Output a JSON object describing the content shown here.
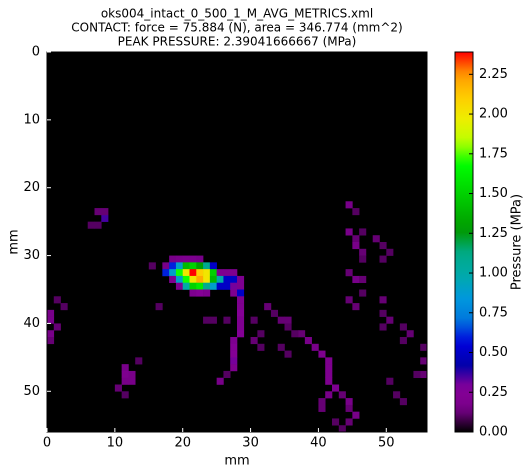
{
  "chart_data": {
    "type": "heatmap",
    "title": [
      "oks004_intact_0_500_1_M_AVG_METRICS.xml",
      "CONTACT: force = 75.884 (N), area = 346.774 (mm^2)",
      "PEAK PRESSURE: 2.39041666667 (MPa)"
    ],
    "xlabel": "mm",
    "ylabel": "mm",
    "colorbar_label": "Pressure (MPa)",
    "xlim": [
      0,
      56
    ],
    "ylim": [
      0,
      56
    ],
    "y_inverted": true,
    "xticks": [
      0,
      10,
      20,
      30,
      40,
      50
    ],
    "yticks": [
      0,
      10,
      20,
      30,
      40,
      50
    ],
    "clim": [
      0,
      2.39041666667
    ],
    "colormap": "nipy_spectral",
    "background": "#000000",
    "cticks": [
      {
        "value": 0,
        "label": "0.00"
      },
      {
        "value": 0.25,
        "label": "0.25"
      },
      {
        "value": 0.5,
        "label": "0.50"
      },
      {
        "value": 0.75,
        "label": "0.75"
      },
      {
        "value": 1,
        "label": "1.00"
      },
      {
        "value": 1.25,
        "label": "1.25"
      },
      {
        "value": 1.5,
        "label": "1.50"
      },
      {
        "value": 1.75,
        "label": "1.75"
      },
      {
        "value": 2,
        "label": "2.00"
      },
      {
        "value": 2.25,
        "label": "2.25"
      }
    ],
    "cells": [
      [
        18,
        30,
        0.15
      ],
      [
        19,
        30,
        0.18
      ],
      [
        20,
        30,
        0.2
      ],
      [
        21,
        30,
        0.18
      ],
      [
        22,
        30,
        0.15
      ],
      [
        17,
        31,
        0.15
      ],
      [
        18,
        31,
        0.6
      ],
      [
        19,
        31,
        0.9
      ],
      [
        20,
        31,
        1.4
      ],
      [
        21,
        31,
        1.5
      ],
      [
        22,
        31,
        1.3
      ],
      [
        23,
        31,
        1.1
      ],
      [
        24,
        31,
        0.5
      ],
      [
        17,
        32,
        0.6
      ],
      [
        18,
        32,
        0.9
      ],
      [
        19,
        32,
        1.7
      ],
      [
        20,
        32,
        2.0
      ],
      [
        21,
        32,
        2.39041666667
      ],
      [
        22,
        32,
        2.1
      ],
      [
        23,
        32,
        2.0
      ],
      [
        24,
        32,
        1.5
      ],
      [
        25,
        32,
        0.2
      ],
      [
        26,
        32,
        0.2
      ],
      [
        27,
        32,
        0.2
      ],
      [
        18,
        33,
        0.2
      ],
      [
        19,
        33,
        0.9
      ],
      [
        20,
        33,
        1.7
      ],
      [
        21,
        33,
        2.0
      ],
      [
        22,
        33,
        2.2
      ],
      [
        23,
        33,
        2.0
      ],
      [
        24,
        33,
        1.4
      ],
      [
        25,
        33,
        1.0
      ],
      [
        26,
        33,
        0.5
      ],
      [
        27,
        33,
        0.5
      ],
      [
        28,
        33,
        0.2
      ],
      [
        19,
        34,
        0.2
      ],
      [
        20,
        34,
        1.0
      ],
      [
        21,
        34,
        1.5
      ],
      [
        22,
        34,
        1.6
      ],
      [
        23,
        34,
        1.1
      ],
      [
        24,
        34,
        0.9
      ],
      [
        25,
        34,
        0.5
      ],
      [
        26,
        34,
        0.5
      ],
      [
        27,
        34,
        0.3
      ],
      [
        28,
        34,
        0.2
      ],
      [
        21,
        35,
        0.2
      ],
      [
        22,
        35,
        0.25
      ],
      [
        23,
        35,
        0.2
      ],
      [
        27,
        35,
        0.2
      ],
      [
        28,
        35,
        0.5
      ],
      [
        8,
        24,
        0.35
      ],
      [
        7,
        23,
        0.12
      ],
      [
        8,
        23,
        0.12
      ],
      [
        6,
        25,
        0.1
      ],
      [
        7,
        25,
        0.1
      ],
      [
        0,
        38,
        0.15
      ],
      [
        0,
        39,
        0.15
      ],
      [
        1,
        40,
        0.12
      ],
      [
        0,
        41,
        0.15
      ],
      [
        1,
        36,
        0.1
      ],
      [
        2,
        37,
        0.1
      ],
      [
        0,
        42,
        0.12
      ],
      [
        11,
        46,
        0.15
      ],
      [
        11,
        47,
        0.2
      ],
      [
        12,
        47,
        0.15
      ],
      [
        11,
        48,
        0.15
      ],
      [
        12,
        48,
        0.15
      ],
      [
        10,
        49,
        0.12
      ],
      [
        11,
        50,
        0.1
      ],
      [
        13,
        45,
        0.1
      ],
      [
        16,
        37,
        0.1
      ],
      [
        15,
        31,
        0.1
      ],
      [
        28,
        36,
        0.2
      ],
      [
        28,
        37,
        0.2
      ],
      [
        28,
        38,
        0.25
      ],
      [
        28,
        39,
        0.2
      ],
      [
        28,
        40,
        0.2
      ],
      [
        28,
        41,
        0.25
      ],
      [
        27,
        42,
        0.2
      ],
      [
        27,
        43,
        0.25
      ],
      [
        27,
        44,
        0.25
      ],
      [
        27,
        45,
        0.3
      ],
      [
        27,
        46,
        0.2
      ],
      [
        25,
        48,
        0.15
      ],
      [
        26,
        47,
        0.1
      ],
      [
        24,
        39,
        0.1
      ],
      [
        23,
        39,
        0.1
      ],
      [
        26,
        39,
        0.1
      ],
      [
        30,
        39,
        0.1
      ],
      [
        31,
        41,
        0.1
      ],
      [
        30,
        42,
        0.12
      ],
      [
        31,
        43,
        0.1
      ],
      [
        32,
        37,
        0.12
      ],
      [
        33,
        38,
        0.1
      ],
      [
        34,
        39,
        0.12
      ],
      [
        35,
        39,
        0.12
      ],
      [
        35,
        40,
        0.1
      ],
      [
        37,
        41,
        0.12
      ],
      [
        38,
        42,
        0.15
      ],
      [
        39,
        43,
        0.15
      ],
      [
        40,
        44,
        0.2
      ],
      [
        41,
        45,
        0.2
      ],
      [
        41,
        46,
        0.2
      ],
      [
        41,
        47,
        0.2
      ],
      [
        41,
        48,
        0.2
      ],
      [
        42,
        49,
        0.2
      ],
      [
        41,
        50,
        0.15
      ],
      [
        40,
        51,
        0.12
      ],
      [
        40,
        52,
        0.12
      ],
      [
        44,
        22,
        0.15
      ],
      [
        45,
        23,
        0.1
      ],
      [
        44,
        26,
        0.15
      ],
      [
        45,
        27,
        0.12
      ],
      [
        46,
        26,
        0.1
      ],
      [
        45,
        28,
        0.15
      ],
      [
        46,
        29,
        0.12
      ],
      [
        46,
        30,
        0.1
      ],
      [
        48,
        27,
        0.12
      ],
      [
        49,
        28,
        0.1
      ],
      [
        50,
        29,
        0.1
      ],
      [
        49,
        30,
        0.1
      ],
      [
        44,
        32,
        0.12
      ],
      [
        45,
        33,
        0.15
      ],
      [
        46,
        33,
        0.12
      ],
      [
        46,
        35,
        0.1
      ],
      [
        44,
        36,
        0.12
      ],
      [
        45,
        37,
        0.12
      ],
      [
        49,
        36,
        0.12
      ],
      [
        49,
        38,
        0.1
      ],
      [
        50,
        39,
        0.12
      ],
      [
        49,
        40,
        0.1
      ],
      [
        52,
        40,
        0.1
      ],
      [
        53,
        41,
        0.12
      ],
      [
        52,
        42,
        0.1
      ],
      [
        55,
        43,
        0.1
      ],
      [
        55,
        45,
        0.12
      ],
      [
        55,
        47,
        0.12
      ],
      [
        54,
        47,
        0.1
      ],
      [
        43,
        50,
        0.12
      ],
      [
        44,
        51,
        0.15
      ],
      [
        44,
        52,
        0.12
      ],
      [
        45,
        53,
        0.15
      ],
      [
        44,
        54,
        0.12
      ],
      [
        43,
        55,
        0.1
      ],
      [
        42,
        54,
        0.1
      ],
      [
        50,
        48,
        0.1
      ],
      [
        51,
        50,
        0.1
      ],
      [
        52,
        51,
        0.1
      ],
      [
        34,
        43,
        0.1
      ],
      [
        35,
        44,
        0.1
      ],
      [
        36,
        41,
        0.1
      ]
    ]
  }
}
